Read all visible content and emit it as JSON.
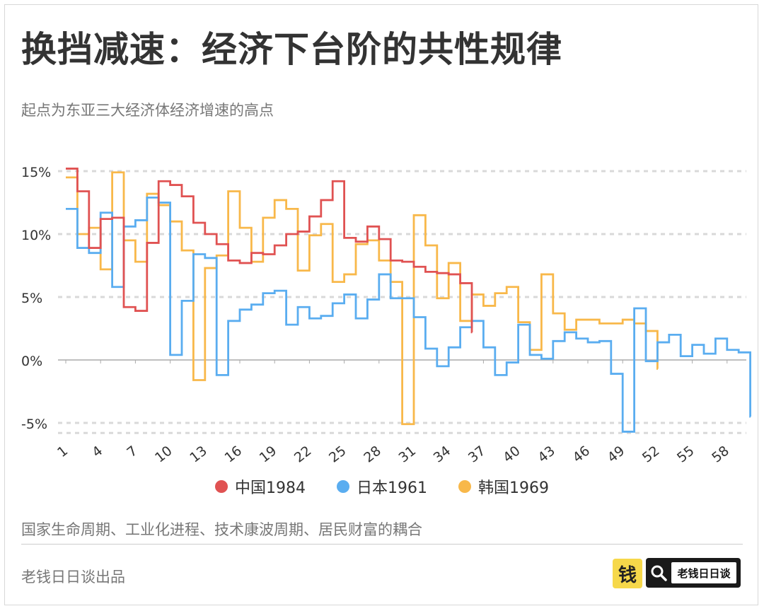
{
  "header": {
    "title": "换挡减速：经济下台阶的共性规律",
    "subtitle": "起点为东亚三大经济体经济增速的高点"
  },
  "footer": {
    "note": "国家生命周期、工业化进程、技术康波周期、居民财富的耦合",
    "credit": "老钱日日谈出品",
    "logo_text": "钱",
    "search_brand": "老钱日日谈",
    "logo_color": "#f6d84a"
  },
  "chart_data": {
    "type": "line",
    "step": true,
    "title": "",
    "xlabel": "",
    "ylabel": "",
    "ylim": [
      -6,
      15.5
    ],
    "yticks": [
      15,
      10,
      5,
      0,
      -5
    ],
    "ytick_labels": [
      "15%",
      "10%",
      "5%",
      "0%",
      "-5%"
    ],
    "xticks": [
      1,
      4,
      7,
      10,
      13,
      16,
      19,
      22,
      25,
      28,
      31,
      34,
      37,
      40,
      43,
      46,
      49,
      52,
      55,
      58
    ],
    "xtick_labels": [
      "1",
      "4",
      "7",
      "10",
      "13",
      "16",
      "19",
      "22",
      "25",
      "28",
      "31",
      "34",
      "37",
      "40",
      "43",
      "46",
      "49",
      "52",
      "55",
      "58"
    ],
    "grid": "horizontal-dashed",
    "legend_position": "bottom-center",
    "series": [
      {
        "name": "中国1984",
        "color": "#e05252",
        "values": [
          15.2,
          13.4,
          8.9,
          11.2,
          11.3,
          4.2,
          3.9,
          9.3,
          14.2,
          13.9,
          13.0,
          10.9,
          10.0,
          9.2,
          7.9,
          7.7,
          8.5,
          8.4,
          9.1,
          10.0,
          10.2,
          11.4,
          12.7,
          14.2,
          9.7,
          9.4,
          10.6,
          9.6,
          7.9,
          7.8,
          7.4,
          7.0,
          6.9,
          6.8,
          6.1,
          2.2
        ]
      },
      {
        "name": "日本1961",
        "color": "#5aadf0",
        "values": [
          12.0,
          8.9,
          8.5,
          11.7,
          5.8,
          10.6,
          11.1,
          12.9,
          12.5,
          0.4,
          4.7,
          8.4,
          8.1,
          -1.2,
          3.1,
          4.0,
          4.4,
          5.3,
          5.5,
          2.8,
          4.2,
          3.3,
          3.5,
          4.5,
          5.2,
          3.3,
          4.8,
          6.8,
          4.9,
          4.9,
          3.4,
          0.9,
          -0.5,
          1.0,
          2.6,
          3.1,
          1.0,
          -1.2,
          -0.2,
          2.8,
          0.4,
          0.1,
          1.5,
          2.2,
          1.7,
          1.4,
          1.5,
          -1.1,
          -5.7,
          4.1,
          -0.1,
          1.4,
          2.0,
          0.3,
          1.2,
          0.5,
          1.7,
          0.8,
          0.6,
          -4.5
        ]
      },
      {
        "name": "韩国1969",
        "color": "#f8b84a",
        "values": [
          14.5,
          10.0,
          10.5,
          7.2,
          14.9,
          9.5,
          7.8,
          13.2,
          12.3,
          11.0,
          8.7,
          -1.6,
          7.3,
          8.3,
          13.4,
          10.5,
          7.8,
          11.3,
          12.7,
          12.0,
          7.1,
          9.9,
          10.8,
          6.2,
          6.8,
          9.2,
          9.5,
          7.9,
          6.2,
          -5.1,
          11.5,
          9.1,
          4.9,
          7.7,
          3.1,
          5.2,
          4.3,
          5.3,
          5.8,
          3.0,
          0.8,
          6.8,
          3.7,
          2.4,
          3.2,
          3.2,
          2.9,
          2.9,
          3.2,
          2.9,
          2.3,
          -0.7
        ]
      }
    ]
  }
}
